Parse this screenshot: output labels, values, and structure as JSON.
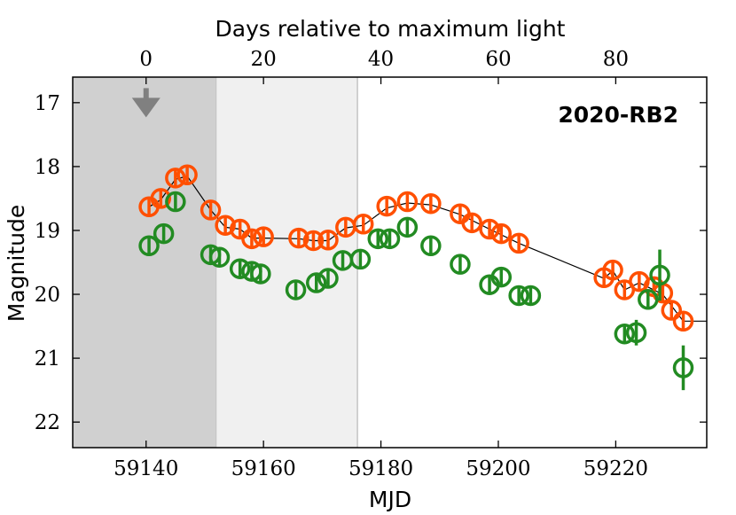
{
  "chart_data": {
    "type": "scatter",
    "title": "",
    "annotation": "2020-RB2",
    "xlabel": "MJD",
    "ylabel": "Magnitude",
    "top_xlabel": "Days relative to maximum light",
    "xlim": [
      59127.5,
      59235.5
    ],
    "ylim": [
      22.4,
      16.6
    ],
    "x_ticks": [
      59140,
      59160,
      59180,
      59200,
      59220
    ],
    "x_tick_labels": [
      "59140",
      "59160",
      "59180",
      "59200",
      "59220"
    ],
    "y_ticks": [
      17,
      18,
      19,
      20,
      21,
      22
    ],
    "y_tick_labels": [
      "17",
      "18",
      "19",
      "20",
      "21",
      "22"
    ],
    "top_axis": {
      "reference_mjd": 59140,
      "ticks": [
        0,
        20,
        40,
        60,
        80
      ],
      "tick_labels": [
        "0",
        "20",
        "40",
        "60",
        "80"
      ]
    },
    "shaded_regions": [
      {
        "x0": 59127.5,
        "x1": 59152,
        "color": "#d0d0d0"
      },
      {
        "x0": 59152,
        "x1": 59176,
        "color": "#f0f0f0"
      }
    ],
    "upper_limit": {
      "x": 59140,
      "y": 17.05,
      "color": "#808080"
    },
    "series": [
      {
        "name": "orange",
        "color": "#ff4f00",
        "points": [
          {
            "x": 59140.5,
            "y": 18.63,
            "err": 0.05
          },
          {
            "x": 59142.5,
            "y": 18.5,
            "err": 0.05
          },
          {
            "x": 59145,
            "y": 18.18,
            "err": 0.05
          },
          {
            "x": 59147,
            "y": 18.13,
            "err": 0.05
          },
          {
            "x": 59151,
            "y": 18.68,
            "err": 0.05
          },
          {
            "x": 59153.5,
            "y": 18.92,
            "err": 0.05
          },
          {
            "x": 59156,
            "y": 18.98,
            "err": 0.05
          },
          {
            "x": 59158,
            "y": 19.13,
            "err": 0.05
          },
          {
            "x": 59160,
            "y": 19.1,
            "err": 0.05
          },
          {
            "x": 59166,
            "y": 19.12,
            "err": 0.05
          },
          {
            "x": 59168.5,
            "y": 19.16,
            "err": 0.05
          },
          {
            "x": 59171,
            "y": 19.15,
            "err": 0.05
          },
          {
            "x": 59174,
            "y": 18.95,
            "err": 0.05
          },
          {
            "x": 59177,
            "y": 18.9,
            "err": 0.05
          },
          {
            "x": 59181,
            "y": 18.62,
            "err": 0.05
          },
          {
            "x": 59184.5,
            "y": 18.55,
            "err": 0.05
          },
          {
            "x": 59188.5,
            "y": 18.58,
            "err": 0.05
          },
          {
            "x": 59193.5,
            "y": 18.74,
            "err": 0.05
          },
          {
            "x": 59195.5,
            "y": 18.88,
            "err": 0.05
          },
          {
            "x": 59198.5,
            "y": 18.98,
            "err": 0.05
          },
          {
            "x": 59200.5,
            "y": 19.05,
            "err": 0.05
          },
          {
            "x": 59203.5,
            "y": 19.2,
            "err": 0.05
          },
          {
            "x": 59218,
            "y": 19.74,
            "err": 0.05
          },
          {
            "x": 59219.5,
            "y": 19.62,
            "err": 0.05
          },
          {
            "x": 59221.5,
            "y": 19.93,
            "err": 0.05
          },
          {
            "x": 59224,
            "y": 19.8,
            "err": 0.05
          },
          {
            "x": 59226.5,
            "y": 19.88,
            "err": 0.05
          },
          {
            "x": 59228,
            "y": 19.98,
            "err": 0.05
          },
          {
            "x": 59229.5,
            "y": 20.25,
            "err": 0.05
          },
          {
            "x": 59231.5,
            "y": 20.42,
            "err": 0.05
          }
        ]
      },
      {
        "name": "green",
        "color": "#228b22",
        "points": [
          {
            "x": 59140.5,
            "y": 19.24,
            "err": 0.05
          },
          {
            "x": 59143,
            "y": 19.05,
            "err": 0.05
          },
          {
            "x": 59145,
            "y": 18.55,
            "err": 0.05
          },
          {
            "x": 59151,
            "y": 19.38,
            "err": 0.05
          },
          {
            "x": 59152.5,
            "y": 19.42,
            "err": 0.05
          },
          {
            "x": 59156,
            "y": 19.6,
            "err": 0.05
          },
          {
            "x": 59158,
            "y": 19.64,
            "err": 0.05
          },
          {
            "x": 59159.5,
            "y": 19.68,
            "err": 0.05
          },
          {
            "x": 59165.5,
            "y": 19.93,
            "err": 0.05
          },
          {
            "x": 59169,
            "y": 19.82,
            "err": 0.05
          },
          {
            "x": 59171,
            "y": 19.75,
            "err": 0.05
          },
          {
            "x": 59173.5,
            "y": 19.47,
            "err": 0.05
          },
          {
            "x": 59176.5,
            "y": 19.45,
            "err": 0.05
          },
          {
            "x": 59179.5,
            "y": 19.13,
            "err": 0.05
          },
          {
            "x": 59181.5,
            "y": 19.13,
            "err": 0.05
          },
          {
            "x": 59184.5,
            "y": 18.95,
            "err": 0.05
          },
          {
            "x": 59188.5,
            "y": 19.24,
            "err": 0.05
          },
          {
            "x": 59193.5,
            "y": 19.53,
            "err": 0.05
          },
          {
            "x": 59198.5,
            "y": 19.85,
            "err": 0.05
          },
          {
            "x": 59200.5,
            "y": 19.73,
            "err": 0.05
          },
          {
            "x": 59203.5,
            "y": 20.02,
            "err": 0.05
          },
          {
            "x": 59205.5,
            "y": 20.02,
            "err": 0.05
          },
          {
            "x": 59221.5,
            "y": 20.62,
            "err": 0.05
          },
          {
            "x": 59223.5,
            "y": 20.6,
            "err": 0.2
          },
          {
            "x": 59225.5,
            "y": 20.08,
            "err": 0.08
          },
          {
            "x": 59227.5,
            "y": 19.7,
            "err": 0.4
          },
          {
            "x": 59231.5,
            "y": 21.15,
            "err": 0.35
          }
        ]
      }
    ],
    "model_line": {
      "color": "#000000",
      "points": [
        {
          "x": 59140.5,
          "y": 18.63
        },
        {
          "x": 59142.5,
          "y": 18.52
        },
        {
          "x": 59145,
          "y": 18.2
        },
        {
          "x": 59147,
          "y": 18.15
        },
        {
          "x": 59151,
          "y": 18.68
        },
        {
          "x": 59153.5,
          "y": 18.95
        },
        {
          "x": 59156,
          "y": 18.98
        },
        {
          "x": 59158,
          "y": 19.12
        },
        {
          "x": 59160,
          "y": 19.12
        },
        {
          "x": 59166,
          "y": 19.13
        },
        {
          "x": 59168.5,
          "y": 19.16
        },
        {
          "x": 59171,
          "y": 19.16
        },
        {
          "x": 59174,
          "y": 18.96
        },
        {
          "x": 59177,
          "y": 18.92
        },
        {
          "x": 59181,
          "y": 18.65
        },
        {
          "x": 59184.5,
          "y": 18.57
        },
        {
          "x": 59188.5,
          "y": 18.6
        },
        {
          "x": 59193.5,
          "y": 18.75
        },
        {
          "x": 59198.5,
          "y": 18.98
        },
        {
          "x": 59203.5,
          "y": 19.2
        },
        {
          "x": 59218,
          "y": 19.75
        },
        {
          "x": 59219.5,
          "y": 19.63
        },
        {
          "x": 59221.5,
          "y": 19.93
        },
        {
          "x": 59224,
          "y": 19.82
        },
        {
          "x": 59228,
          "y": 20.0
        },
        {
          "x": 59231.5,
          "y": 20.42
        },
        {
          "x": 59235.5,
          "y": 20.42
        }
      ]
    }
  }
}
